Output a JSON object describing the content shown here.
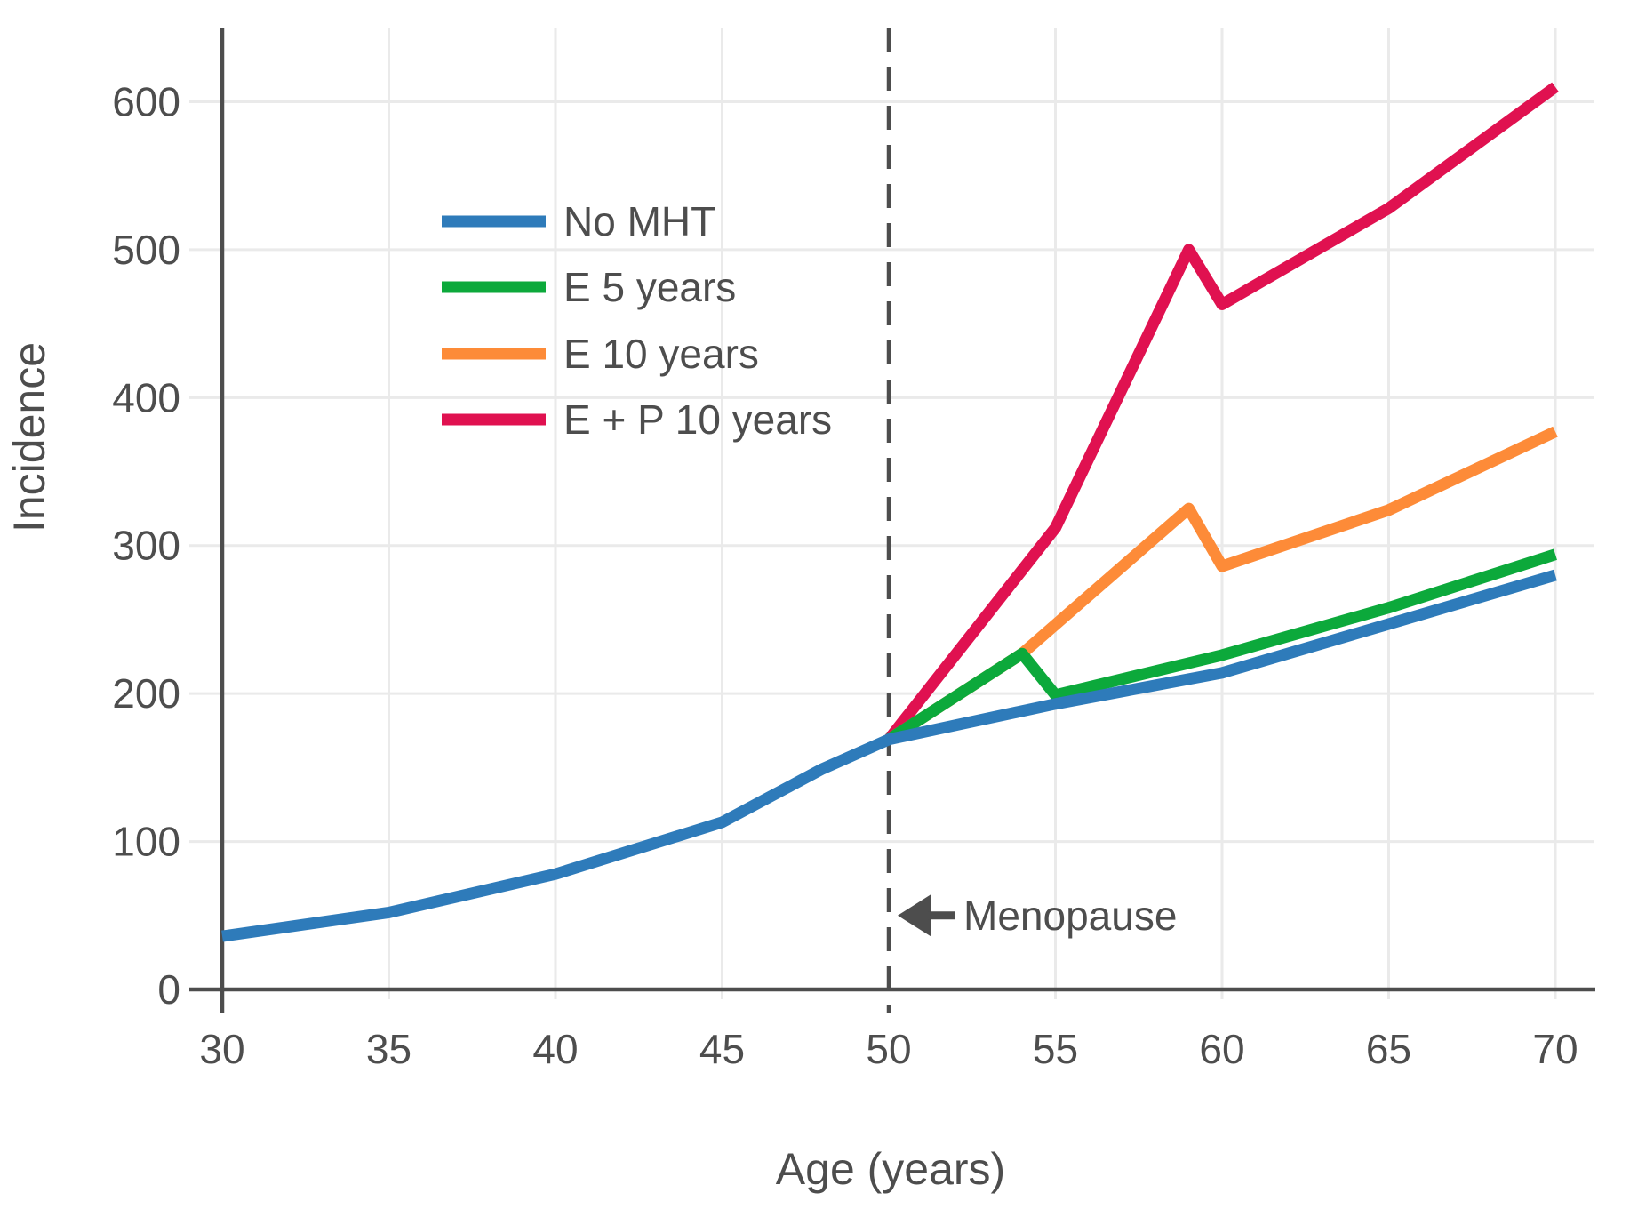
{
  "chart_data": {
    "type": "line",
    "title": "",
    "xlabel": "Age (years)",
    "ylabel": "Incidence",
    "x_ticks": [
      30,
      35,
      40,
      45,
      50,
      55,
      60,
      65,
      70
    ],
    "y_ticks": [
      0,
      100,
      200,
      300,
      400,
      500,
      600
    ],
    "xlim": [
      30,
      71.2
    ],
    "ylim": [
      0,
      650
    ],
    "grid": true,
    "legend_position": "upper left inside plot",
    "vline": {
      "x": 50,
      "style": "dashed"
    },
    "annotation": {
      "text": "Menopause",
      "arrow_points_to_x": 50,
      "at_value": 50,
      "direction": "left"
    },
    "series": [
      {
        "name": "No MHT",
        "color": "#2E7BBA",
        "points": [
          [
            30,
            36
          ],
          [
            35,
            52
          ],
          [
            40,
            78
          ],
          [
            45,
            113
          ],
          [
            48,
            149
          ],
          [
            50,
            169
          ],
          [
            55,
            193
          ],
          [
            60,
            214
          ],
          [
            65,
            247
          ],
          [
            70,
            280
          ]
        ]
      },
      {
        "name": "E 5 years",
        "color": "#0CA93B",
        "points": [
          [
            50,
            169
          ],
          [
            54,
            227
          ],
          [
            55,
            199
          ],
          [
            60,
            226
          ],
          [
            65,
            258
          ],
          [
            70,
            294
          ]
        ]
      },
      {
        "name": "E 10 years",
        "color": "#FD8B38",
        "points": [
          [
            50,
            169
          ],
          [
            54,
            227
          ],
          [
            59,
            325
          ],
          [
            60,
            286
          ],
          [
            65,
            324
          ],
          [
            70,
            377
          ]
        ]
      },
      {
        "name": "E + P 10 years",
        "color": "#E01150",
        "points": [
          [
            50,
            169
          ],
          [
            55,
            312
          ],
          [
            59,
            500
          ],
          [
            60,
            463
          ],
          [
            65,
            528
          ],
          [
            70,
            610
          ]
        ]
      }
    ],
    "style": {
      "axis_color": "#4D4D4D",
      "text_color": "#4D4D4D",
      "grid_color": "#EAEAEA",
      "background": "#FFFFFF",
      "line_width": 13
    }
  }
}
